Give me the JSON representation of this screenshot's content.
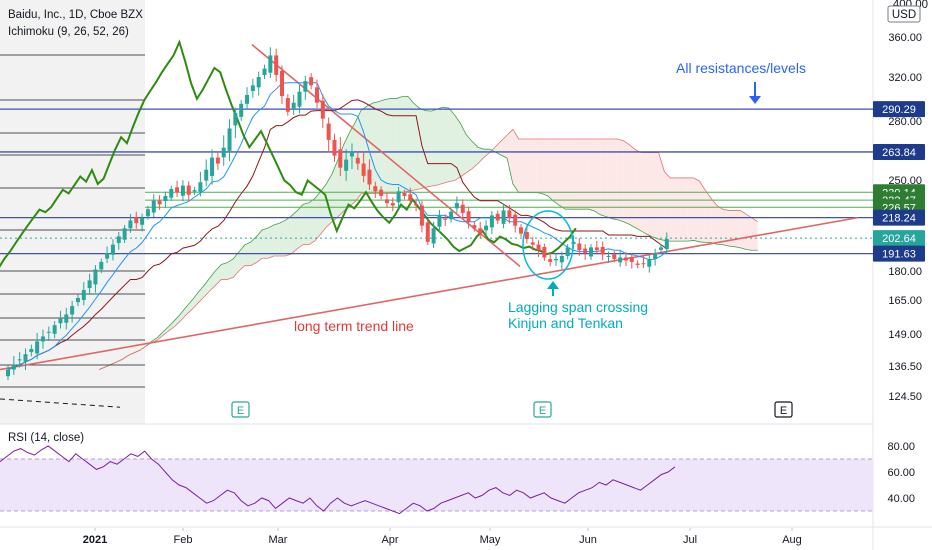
{
  "header": {
    "symbol_line": "Baidu, Inc., 1D, Cboe BZX",
    "indicator_line": "Ichimoku (9, 26, 52, 26)",
    "currency": "USD",
    "top_price": "400.00"
  },
  "rsi_panel": {
    "label": "RSI (14, close)",
    "ticks": [
      "80.00",
      "60.00",
      "40.00"
    ]
  },
  "annotations": {
    "resistances": "All resistances/levels",
    "trend_line": "long term trend line",
    "lagging_1": "Lagging span crossing",
    "lagging_2": "Kinjun and Tenkan"
  },
  "earnings_markers": [
    "E",
    "E",
    "E"
  ],
  "colors": {
    "candle_up": "#26a69a",
    "candle_down": "#ef5350",
    "lagging_span": "#2e8b0f",
    "tenkan": "#2196f3",
    "kijun": "#8b1a1a",
    "cloud_bull": "#c8e6c9",
    "cloud_bear": "#fcd5d5",
    "trend_line": "#e06666",
    "resistance_blue": "#3f51b5",
    "level_green": "#4caf50",
    "price_axis_label": "#1e3a8a",
    "current_price_label": "#26a69a",
    "rsi_line": "#7b1fa2",
    "rsi_band": "#efe5fb",
    "annotation_blue": "#2962ff",
    "annotation_red": "#e53935",
    "annotation_cyan": "#00acc1"
  },
  "chart_data": {
    "type": "candlestick",
    "title": "Baidu, Inc., 1D, Cboe BZX",
    "x_tick_labels": [
      "2021",
      "Feb",
      "Mar",
      "Apr",
      "May",
      "Jun",
      "Jul",
      "Aug"
    ],
    "y_tick_labels": [
      "360.00",
      "320.00",
      "280.00",
      "250.00",
      "180.00",
      "165.00",
      "149.00",
      "136.50",
      "124.50"
    ],
    "ylim": [
      118,
      400
    ],
    "scale": "log",
    "price_levels": [
      {
        "value": "290.29",
        "style": "resistance"
      },
      {
        "value": "263.84",
        "style": "resistance"
      },
      {
        "value": "239.14",
        "style": "level"
      },
      {
        "value": "232.47",
        "style": "level"
      },
      {
        "value": "226.57",
        "style": "level"
      },
      {
        "value": "218.24",
        "style": "resistance"
      },
      {
        "value": "202.64",
        "style": "current"
      },
      {
        "value": "191.63",
        "style": "resistance"
      }
    ],
    "closes": [
      135,
      137,
      139,
      141,
      143,
      146,
      148,
      150,
      153,
      156,
      158,
      162,
      166,
      170,
      175,
      181,
      186,
      192,
      198,
      204,
      210,
      216,
      214,
      218,
      225,
      232,
      229,
      236,
      242,
      239,
      245,
      237,
      241,
      248,
      255,
      261,
      258,
      266,
      276,
      287,
      295,
      303,
      312,
      320,
      328,
      341,
      322,
      302,
      288,
      296,
      306,
      316,
      312,
      296,
      282,
      270,
      262,
      256,
      260,
      264,
      258,
      252,
      246,
      240,
      236,
      230,
      228,
      240,
      236,
      232,
      228,
      212,
      200,
      210,
      220,
      217,
      223,
      230,
      222,
      215,
      210,
      206,
      212,
      220,
      216,
      224,
      218,
      212,
      206,
      202,
      198,
      194,
      189,
      186,
      188,
      190,
      196,
      200,
      194,
      192,
      196,
      194,
      191,
      190,
      188,
      189,
      187,
      186,
      184,
      185,
      188,
      192,
      196,
      202
    ],
    "rsi_values": [
      68,
      72,
      76,
      78,
      75,
      73,
      77,
      80,
      76,
      72,
      68,
      74,
      70,
      66,
      62,
      64,
      68,
      66,
      70,
      74,
      72,
      76,
      70,
      66,
      60,
      54,
      50,
      48,
      44,
      40,
      36,
      38,
      42,
      46,
      44,
      38,
      34,
      36,
      40,
      38,
      32,
      36,
      40,
      38,
      36,
      40,
      34,
      30,
      36,
      40,
      36,
      34,
      36,
      38,
      36,
      34,
      32,
      30,
      28,
      32,
      36,
      34,
      30,
      32,
      36,
      38,
      40,
      42,
      44,
      40,
      42,
      46,
      48,
      44,
      42,
      46,
      44,
      40,
      42,
      44,
      40,
      38,
      36,
      40,
      44,
      46,
      48,
      52,
      50,
      54,
      52,
      50,
      48,
      46,
      50,
      54,
      58,
      60,
      64
    ]
  }
}
